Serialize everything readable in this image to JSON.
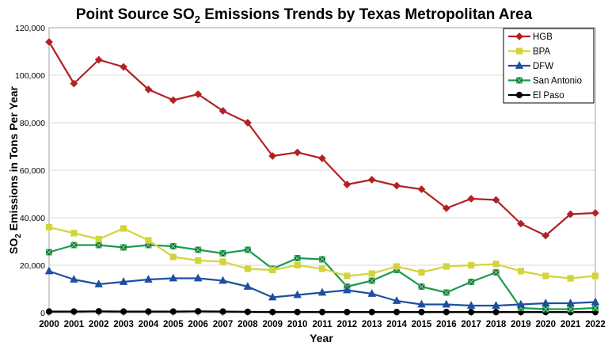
{
  "chart_data": {
    "type": "line",
    "title_main": "Point Source SO",
    "title_sub": "2",
    "title_rest": " Emissions Trends by Texas Metropolitan Area",
    "ylabel_main": "SO",
    "ylabel_sub": "2",
    "ylabel_rest": " Emissions in Tons Per Year",
    "xlabel": "Year",
    "ylim": [
      0,
      120000
    ],
    "yticks": [
      0,
      20000,
      40000,
      60000,
      80000,
      100000,
      120000
    ],
    "ytick_labels": [
      "0",
      "20,000",
      "40,000",
      "60,000",
      "80,000",
      "100,000",
      "120,000"
    ],
    "x": [
      "2000",
      "2001",
      "2002",
      "2003",
      "2004",
      "2005",
      "2006",
      "2007",
      "2008",
      "2009",
      "2010",
      "2011",
      "2012",
      "2013",
      "2014",
      "2015",
      "2016",
      "2017",
      "2018",
      "2019",
      "2020",
      "2021",
      "2022"
    ],
    "grid": true,
    "legend_position": "top-right",
    "series": [
      {
        "name": "HGB",
        "color": "#b22222",
        "marker": "diamond",
        "values": [
          114000,
          96500,
          106500,
          103500,
          94000,
          89500,
          92000,
          85000,
          80000,
          66000,
          67500,
          65000,
          54000,
          56000,
          53500,
          52000,
          44000,
          48000,
          47500,
          37500,
          32500,
          41500,
          42000
        ]
      },
      {
        "name": "BPA",
        "color": "#d4d43a",
        "marker": "square",
        "values": [
          36000,
          33500,
          31000,
          35500,
          30500,
          23500,
          22000,
          21500,
          18500,
          18000,
          20000,
          18500,
          15500,
          16500,
          19500,
          17000,
          19500,
          20000,
          20500,
          17500,
          15500,
          14500,
          15500
        ]
      },
      {
        "name": "DFW",
        "color": "#1f4fa0",
        "marker": "triangle",
        "values": [
          17500,
          14000,
          12000,
          13000,
          14000,
          14500,
          14500,
          13500,
          11000,
          6500,
          7500,
          8500,
          9500,
          8000,
          5000,
          3500,
          3500,
          3000,
          3000,
          3500,
          4000,
          4000,
          4500
        ]
      },
      {
        "name": "San Antonio",
        "color": "#1a9a4a",
        "marker": "x",
        "values": [
          25500,
          28500,
          28500,
          27500,
          28500,
          28000,
          26500,
          25000,
          26500,
          18500,
          23000,
          22500,
          11000,
          13500,
          18000,
          11000,
          8500,
          13000,
          17000,
          2000,
          1500,
          1500,
          2000
        ]
      },
      {
        "name": "El Paso",
        "color": "#000000",
        "marker": "circle",
        "values": [
          500,
          500,
          600,
          500,
          500,
          500,
          600,
          500,
          400,
          300,
          300,
          300,
          300,
          300,
          300,
          300,
          300,
          300,
          300,
          300,
          300,
          300,
          300
        ]
      }
    ]
  }
}
